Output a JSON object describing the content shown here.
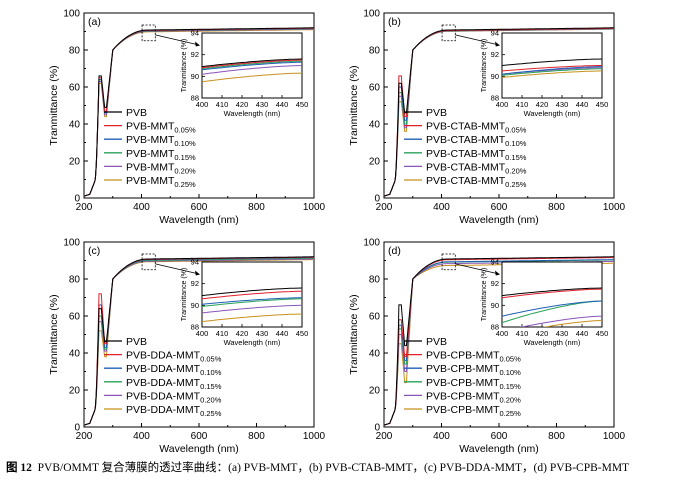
{
  "colors": {
    "pvb": "#000000",
    "s1": "#e0202a",
    "s2": "#1f5fb4",
    "s3": "#2aa05a",
    "s4": "#8a55b8",
    "s5": "#c8901e"
  },
  "caption": {
    "fig_label": "图 12",
    "text": "PVB/OMMT 复合薄膜的透过率曲线：(a) PVB-MMT，(b) PVB-CTAB-MMT，(c) PVB-DDA-MMT，(d) PVB-CPB-MMT"
  },
  "chart_data": [
    {
      "type": "line",
      "panel": "(a)",
      "xlabel": "Wavelength (nm)",
      "ylabel": "Tranmittance (%)",
      "xlim": [
        200,
        1000
      ],
      "ylim": [
        0,
        100
      ],
      "xticks": [
        "200",
        "400",
        "600",
        "800",
        "1000"
      ],
      "yticks": [
        "0",
        "20",
        "40",
        "60",
        "80",
        "100"
      ],
      "legend": [
        {
          "base": "PVB",
          "sub": ""
        },
        {
          "base": "PVB-MMT",
          "sub": "0.05%"
        },
        {
          "base": "PVB-MMT",
          "sub": "0.10%"
        },
        {
          "base": "PVB-MMT",
          "sub": "0.15%"
        },
        {
          "base": "PVB-MMT",
          "sub": "0.20%"
        },
        {
          "base": "PVB-MMT",
          "sub": "0.25%"
        }
      ],
      "peaks": [
        66,
        65,
        64,
        64,
        63,
        62
      ],
      "dips": [
        49,
        47,
        46,
        46,
        45,
        44
      ],
      "plateau": [
        92,
        91.8,
        91.6,
        91.5,
        91.3,
        91
      ],
      "inset": {
        "xlabel": "Wavelength (nm)",
        "ylabel": "Tranmittance (%)",
        "xlim": [
          400,
          450
        ],
        "ylim": [
          88,
          94
        ],
        "xticks": [
          "400",
          "410",
          "420",
          "430",
          "440",
          "450"
        ],
        "yticks": [
          "88",
          "90",
          "92",
          "94"
        ],
        "start": [
          90.9,
          90.8,
          90.6,
          90.7,
          90.2,
          89.5
        ],
        "end": [
          91.6,
          91.5,
          91.3,
          91.4,
          91.0,
          90.3
        ]
      }
    },
    {
      "type": "line",
      "panel": "(b)",
      "xlabel": "Wavelength (nm)",
      "ylabel": "Tranmittance (%)",
      "xlim": [
        200,
        1000
      ],
      "ylim": [
        0,
        100
      ],
      "xticks": [
        "200",
        "400",
        "600",
        "800",
        "1000"
      ],
      "yticks": [
        "0",
        "20",
        "40",
        "60",
        "80",
        "100"
      ],
      "legend": [
        {
          "base": "PVB",
          "sub": ""
        },
        {
          "base": "PVB-CTAB-MMT",
          "sub": "0.05%"
        },
        {
          "base": "PVB-CTAB-MMT",
          "sub": "0.10%"
        },
        {
          "base": "PVB-CTAB-MMT",
          "sub": "0.15%"
        },
        {
          "base": "PVB-CTAB-MMT",
          "sub": "0.20%"
        },
        {
          "base": "PVB-CTAB-MMT",
          "sub": "0.25%"
        }
      ],
      "peaks": [
        62,
        66,
        60,
        57,
        55,
        52
      ],
      "dips": [
        46,
        44,
        42,
        40,
        38,
        36
      ],
      "plateau": [
        92,
        91.7,
        91.6,
        91.5,
        91.4,
        91.3
      ],
      "inset": {
        "xlabel": "Wavelength (nm)",
        "ylabel": "Tranmittance (%)",
        "xlim": [
          400,
          450
        ],
        "ylim": [
          88,
          94
        ],
        "xticks": [
          "400",
          "410",
          "420",
          "430",
          "440",
          "450"
        ],
        "yticks": [
          "88",
          "90",
          "92",
          "94"
        ],
        "start": [
          91.0,
          90.5,
          90.2,
          90.1,
          90.2,
          89.9
        ],
        "end": [
          91.6,
          91.0,
          90.9,
          90.7,
          90.8,
          90.5
        ]
      }
    },
    {
      "type": "line",
      "panel": "(c)",
      "xlabel": "Wavelength (nm)",
      "ylabel": "Tranmittance (%)",
      "xlim": [
        200,
        1000
      ],
      "ylim": [
        0,
        100
      ],
      "xticks": [
        "200",
        "400",
        "600",
        "800",
        "1000"
      ],
      "yticks": [
        "0",
        "20",
        "40",
        "60",
        "80",
        "100"
      ],
      "legend": [
        {
          "base": "PVB",
          "sub": ""
        },
        {
          "base": "PVB-DDA-MMT",
          "sub": "0.05%"
        },
        {
          "base": "PVB-DDA-MMT",
          "sub": "0.10%"
        },
        {
          "base": "PVB-DDA-MMT",
          "sub": "0.15%"
        },
        {
          "base": "PVB-DDA-MMT",
          "sub": "0.20%"
        },
        {
          "base": "PVB-DDA-MMT",
          "sub": "0.25%"
        }
      ],
      "peaks": [
        64,
        72,
        66,
        60,
        57,
        52
      ],
      "dips": [
        46,
        45,
        43,
        42,
        41,
        38
      ],
      "plateau": [
        92,
        91.8,
        91.6,
        91.2,
        90.8,
        90.5
      ],
      "inset": {
        "xlabel": "Wavelength (nm)",
        "ylabel": "Tranmittance (%)",
        "xlim": [
          400,
          450
        ],
        "ylim": [
          88,
          94
        ],
        "xticks": [
          "400",
          "410",
          "420",
          "430",
          "440",
          "450"
        ],
        "yticks": [
          "88",
          "90",
          "92",
          "94"
        ],
        "start": [
          90.9,
          90.6,
          90.1,
          89.9,
          89.3,
          88.5
        ],
        "end": [
          91.6,
          91.3,
          90.7,
          90.6,
          90.0,
          89.2
        ]
      }
    },
    {
      "type": "line",
      "panel": "(d)",
      "xlabel": "Wavelength (nm)",
      "ylabel": "Tranmittance (%)",
      "xlim": [
        200,
        1000
      ],
      "ylim": [
        0,
        100
      ],
      "xticks": [
        "200",
        "400",
        "600",
        "800",
        "1000"
      ],
      "yticks": [
        "0",
        "20",
        "40",
        "60",
        "80",
        "100"
      ],
      "legend": [
        {
          "base": "PVB",
          "sub": ""
        },
        {
          "base": "PVB-CPB-MMT",
          "sub": "0.05%"
        },
        {
          "base": "PVB-CPB-MMT",
          "sub": "0.10%"
        },
        {
          "base": "PVB-CPB-MMT",
          "sub": "0.15%"
        },
        {
          "base": "PVB-CPB-MMT",
          "sub": "0.20%"
        },
        {
          "base": "PVB-CPB-MMT",
          "sub": "0.25%"
        }
      ],
      "peaks": [
        66,
        58,
        55,
        53,
        50,
        45
      ],
      "dips": [
        44,
        38,
        36,
        34,
        30,
        24
      ],
      "plateau": [
        92,
        91.6,
        90.5,
        90.3,
        89.5,
        88.5
      ],
      "inset": {
        "xlabel": "Wavelength (nm)",
        "ylabel": "Tranmittance (%)",
        "xlim": [
          400,
          450
        ],
        "ylim": [
          88,
          94
        ],
        "xticks": [
          "400",
          "410",
          "420",
          "430",
          "440",
          "450"
        ],
        "yticks": [
          "88",
          "90",
          "92",
          "94"
        ],
        "start": [
          90.9,
          90.7,
          89.0,
          88.4,
          87.6,
          87.2
        ],
        "end": [
          91.6,
          91.5,
          90.4,
          90.4,
          89.0,
          88.6
        ]
      }
    }
  ]
}
